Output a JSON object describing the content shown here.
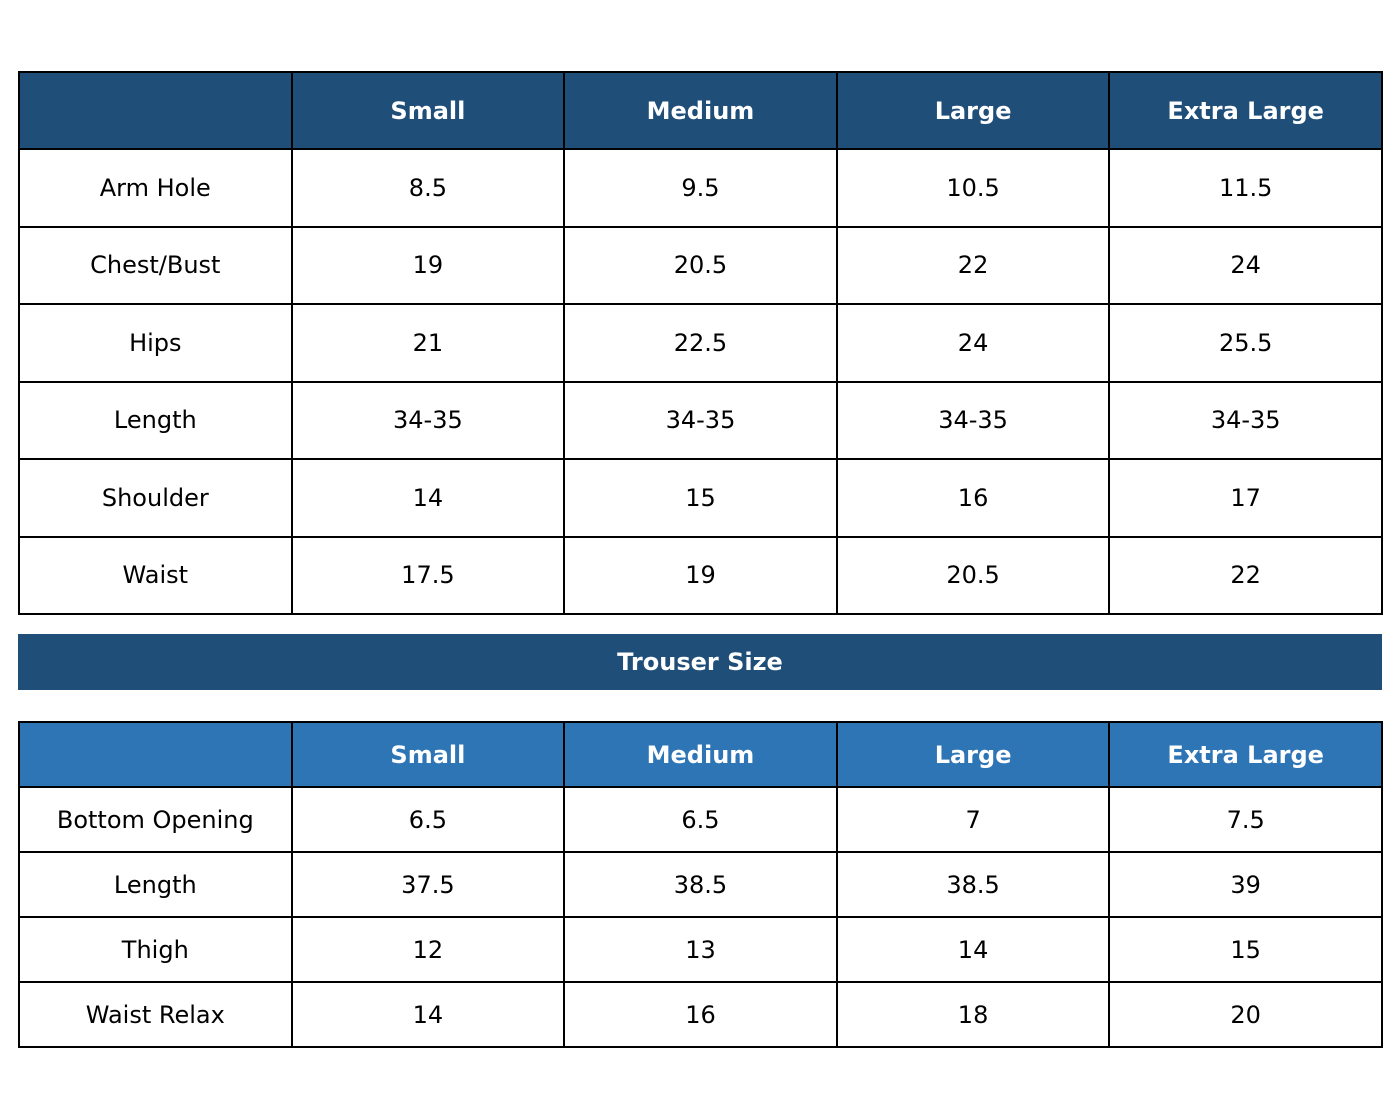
{
  "top_table": {
    "columns": [
      "Small",
      "Medium",
      "Large",
      "Extra Large"
    ],
    "rows": [
      {
        "label": "Arm Hole",
        "values": [
          8.5,
          9.5,
          10.5,
          11.5
        ]
      },
      {
        "label": "Chest/Bust",
        "values": [
          19,
          20.5,
          22,
          24
        ]
      },
      {
        "label": "Hips",
        "values": [
          21,
          22.5,
          24,
          25.5
        ]
      },
      {
        "label": "Length",
        "values": [
          "34-35",
          "34-35",
          "34-35",
          "34-35"
        ]
      },
      {
        "label": "Shoulder",
        "values": [
          14,
          15,
          16,
          17
        ]
      },
      {
        "label": "Waist",
        "values": [
          17.5,
          19,
          20.5,
          22
        ]
      }
    ]
  },
  "trouser_banner": {
    "title": "Trouser Size"
  },
  "trouser_table": {
    "columns": [
      "Small",
      "Medium",
      "Large",
      "Extra Large"
    ],
    "rows": [
      {
        "label": "Bottom Opening",
        "values": [
          6.5,
          6.5,
          7,
          7.5
        ]
      },
      {
        "label": "Length",
        "values": [
          37.5,
          38.5,
          38.5,
          39
        ]
      },
      {
        "label": "Thigh",
        "values": [
          12,
          13,
          14,
          15
        ]
      },
      {
        "label": "Waist Relax",
        "values": [
          14,
          16,
          18,
          20
        ]
      }
    ]
  }
}
